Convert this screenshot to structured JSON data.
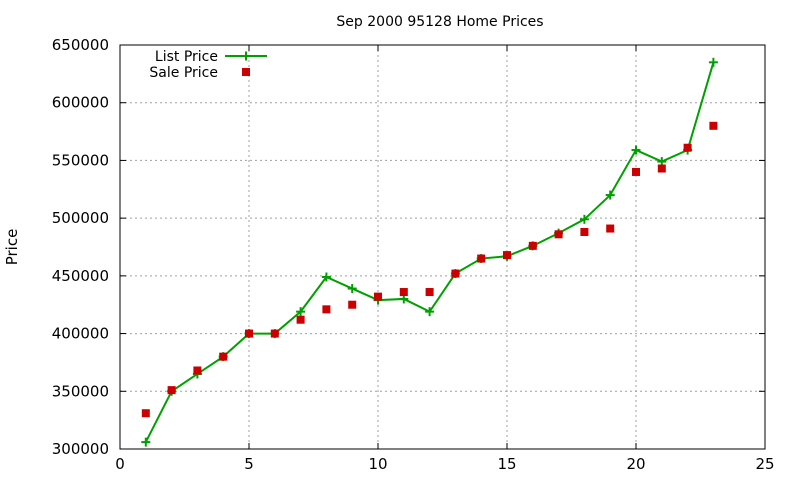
{
  "chart_data": {
    "type": "line",
    "title": "Sep 2000 95128 Home Prices",
    "xlabel": "",
    "ylabel": "Price",
    "xlim": [
      0,
      25
    ],
    "ylim": [
      300000,
      650000
    ],
    "xticks": [
      0,
      5,
      10,
      15,
      20,
      25
    ],
    "yticks": [
      300000,
      350000,
      400000,
      450000,
      500000,
      550000,
      600000,
      650000
    ],
    "grid": true,
    "legend_position": "top-left",
    "x": [
      1,
      2,
      3,
      4,
      5,
      6,
      7,
      8,
      9,
      10,
      11,
      12,
      13,
      14,
      15,
      16,
      17,
      18,
      19,
      20,
      21,
      22,
      23
    ],
    "series": [
      {
        "name": "List Price",
        "style": "linespoints",
        "color": "#00a000",
        "values": [
          306000,
          350000,
          365000,
          380000,
          400000,
          400000,
          419000,
          449000,
          439000,
          429000,
          430000,
          419000,
          452000,
          465000,
          467000,
          476000,
          487000,
          499000,
          520000,
          559000,
          549000,
          559000,
          635000
        ]
      },
      {
        "name": "Sale Price",
        "style": "points",
        "color": "#cc0000",
        "values": [
          331000,
          351000,
          368000,
          380000,
          400000,
          400000,
          412000,
          421000,
          425000,
          432000,
          436000,
          436000,
          452000,
          465000,
          468000,
          476000,
          486000,
          488000,
          491000,
          540000,
          543000,
          561000,
          580000
        ]
      }
    ]
  }
}
